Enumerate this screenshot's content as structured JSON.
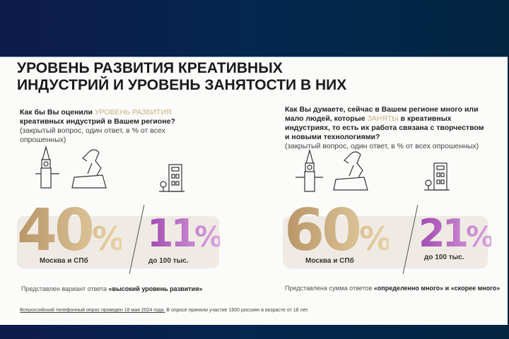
{
  "title": {
    "line1": "УРОВЕНЬ РАЗВИТИЯ КРЕАТИВНЫХ",
    "line2": "ИНДУСТРИЙ И УРОВЕНЬ ЗАНЯТОСТИ В НИХ"
  },
  "left": {
    "q_pre": "Как бы Вы оценили ",
    "q_hl": "УРОВЕНЬ РАЗВИТИЯ",
    "q_post": " креативных индустрий в Вашем регионе?",
    "sub": "(закрытый вопрос, один ответ, в % от всех опрошенных)",
    "big_value": "40",
    "big_pct": "%",
    "big_label": "Москва и СПб",
    "small_value": "11",
    "small_pct": "%",
    "small_label": "до 100 тыс.",
    "note_pre": "Представлен вариант ответа ",
    "note_bold": "«высокий уровень развития»"
  },
  "right": {
    "q_pre": "Как Вы думаете, сейчас в Вашем регионе много или мало людей, которые ",
    "q_hl": "ЗАНЯТЫ",
    "q_post": " в креативных индустриях, то есть их работа связана с творчеством и новыми технологиями?",
    "sub": "(закрытый вопрос, один ответ, в % от всех опрошенных)",
    "big_value": "60",
    "big_pct": "%",
    "big_label": "Москва и СПб",
    "small_value": "21",
    "small_pct": "%",
    "small_label": "до 100 тыс.",
    "note_pre": "Представлена сумма ответов ",
    "note_bold": "«определенно много» и «скорее много»"
  },
  "footnote": {
    "underlined": "Всероссийский телефонный опрос проведен 18 мая 2024 года.",
    "rest": " В опросе приняли участие 1600 россиян в возрасте от 18 лет."
  },
  "colors": {
    "gold": "#c9ad86",
    "purple": "#b65ec2",
    "navy": "#04264f"
  }
}
